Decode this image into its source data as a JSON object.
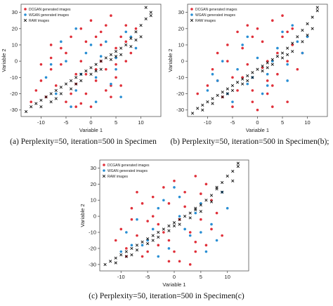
{
  "chart_data": [
    {
      "type": "scatter",
      "caption": "(a) Perplexity=50, iteration=500 in Specimen",
      "xlabel": "Variable 1",
      "ylabel": "Variable 2",
      "xlim": [
        -14,
        14
      ],
      "ylim": [
        -34,
        35
      ],
      "xticks": [
        -10,
        -5,
        0,
        5,
        10
      ],
      "yticks": [
        -30,
        -20,
        -10,
        0,
        10,
        20,
        30
      ],
      "grid": false,
      "legend_position": "top-left",
      "series": [
        {
          "name": "DCGAN generated images",
          "color": "#e0303a",
          "marker": "dot",
          "x": [
            -12,
            -11,
            -10,
            -9,
            -8,
            -8,
            -7,
            -6,
            -5,
            -4,
            -3,
            -2,
            -1,
            0,
            1,
            2,
            3,
            4,
            5,
            6,
            7,
            -6,
            -4,
            -2,
            0,
            2,
            4,
            6,
            8,
            -3,
            -1,
            1,
            3,
            5,
            7,
            -5,
            -3,
            -1,
            1,
            3,
            5,
            7,
            9,
            -8,
            -10,
            2,
            4,
            -2
          ],
          "y": [
            -25,
            -18,
            -12,
            -22,
            -5,
            2,
            -15,
            8,
            -25,
            15,
            -8,
            20,
            -20,
            25,
            -12,
            18,
            -5,
            28,
            8,
            -15,
            22,
            -2,
            -20,
            0,
            -28,
            10,
            -22,
            15,
            5,
            -14,
            12,
            -5,
            22,
            -10,
            0,
            5,
            -28,
            -8,
            15,
            -18,
            -2,
            12,
            20,
            10,
            -2,
            0,
            -15,
            -26
          ]
        },
        {
          "name": "WGAN generated images",
          "color": "#2a8fd4",
          "marker": "dot",
          "x": [
            -9,
            -7,
            -5,
            -3,
            -1,
            1,
            3,
            5,
            7,
            9,
            -6,
            -2,
            2,
            6,
            -4,
            0,
            4,
            8,
            -8,
            -3,
            1,
            5
          ],
          "y": [
            -10,
            -20,
            0,
            -18,
            5,
            -25,
            12,
            -5,
            18,
            8,
            12,
            -8,
            3,
            -22,
            -28,
            10,
            -14,
            15,
            -2,
            20,
            -10,
            2
          ]
        },
        {
          "name": "RAW images",
          "color": "#111111",
          "marker": "x",
          "x": [
            -13,
            -12,
            -11,
            -10,
            -9,
            -8,
            -7,
            -6,
            -5,
            -4,
            -3,
            -2,
            -1,
            0,
            1,
            2,
            3,
            4,
            5,
            6,
            7,
            8,
            9,
            10,
            11,
            12,
            -10,
            -8,
            -6,
            -4,
            -2,
            0,
            2,
            4,
            6,
            8,
            10,
            12,
            -7,
            -3,
            1,
            5,
            9,
            11
          ],
          "y": [
            -31,
            -28,
            -26,
            -24,
            -22,
            -20,
            -18,
            -16,
            -14,
            -12,
            -10,
            -8,
            -6,
            -4,
            -2,
            0,
            2,
            4,
            6,
            8,
            10,
            14,
            18,
            22,
            26,
            30,
            -28,
            -25,
            -20,
            -17,
            -12,
            -8,
            -5,
            1,
            4,
            9,
            15,
            28,
            -23,
            -14,
            -6,
            3,
            13,
            33
          ]
        }
      ]
    },
    {
      "type": "scatter",
      "caption": "(b) Perplexity=50, iteration=500 in Specimen(b);",
      "xlabel": "Variable 1",
      "ylabel": "Variable 2",
      "xlim": [
        -14,
        14
      ],
      "ylim": [
        -34,
        35
      ],
      "xticks": [
        -10,
        -5,
        0,
        5,
        10
      ],
      "yticks": [
        -30,
        -20,
        -10,
        0,
        10,
        20,
        30
      ],
      "grid": false,
      "legend_position": "top-left",
      "series": [
        {
          "name": "DCGAN generated images",
          "color": "#e0303a",
          "marker": "dot",
          "x": [
            -12,
            -10,
            -9,
            -8,
            -7,
            -6,
            -5,
            -4,
            -3,
            -2,
            -1,
            0,
            1,
            2,
            3,
            4,
            5,
            6,
            7,
            8,
            -6,
            -4,
            -2,
            0,
            2,
            4,
            6,
            -3,
            -1,
            1,
            3,
            5,
            7,
            -5,
            -1,
            3,
            9,
            -8,
            2,
            6
          ],
          "y": [
            -20,
            -15,
            -5,
            5,
            -22,
            10,
            -28,
            18,
            -10,
            22,
            -18,
            -30,
            12,
            -20,
            25,
            -8,
            15,
            -25,
            20,
            -5,
            0,
            -18,
            -2,
            20,
            -12,
            5,
            0,
            8,
            -25,
            -4,
            -28,
            28,
            10,
            -10,
            15,
            -15,
            5,
            -12,
            0,
            18
          ]
        },
        {
          "name": "WGAN generated images",
          "color": "#2a8fd4",
          "marker": "dot",
          "x": [
            -10,
            -8,
            -6,
            -4,
            -2,
            0,
            2,
            4,
            6,
            8,
            10,
            -7,
            -3,
            1,
            5,
            9,
            -5,
            -1,
            3,
            7,
            -9,
            -2,
            2,
            6
          ],
          "y": [
            -18,
            -12,
            -20,
            -5,
            -14,
            2,
            -8,
            8,
            -2,
            12,
            15,
            0,
            10,
            -20,
            18,
            5,
            -25,
            -10,
            0,
            22,
            -8,
            15,
            -15,
            -12
          ]
        },
        {
          "name": "RAW images",
          "color": "#111111",
          "marker": "x",
          "x": [
            -13,
            -12,
            -11,
            -10,
            -9,
            -8,
            -7,
            -6,
            -5,
            -4,
            -3,
            -2,
            -1,
            0,
            1,
            2,
            3,
            4,
            5,
            6,
            7,
            8,
            9,
            10,
            11,
            12,
            -11,
            -9,
            -7,
            -5,
            -3,
            -1,
            1,
            3,
            5,
            7,
            9,
            11,
            -6,
            -2,
            2,
            6,
            10,
            12
          ],
          "y": [
            -32,
            -29,
            -27,
            -25,
            -23,
            -21,
            -19,
            -17,
            -15,
            -13,
            -11,
            -9,
            -7,
            -5,
            -3,
            -1,
            1,
            3,
            5,
            8,
            11,
            15,
            19,
            23,
            27,
            31,
            -30,
            -26,
            -22,
            -18,
            -14,
            -10,
            -6,
            -2,
            2,
            6,
            12,
            20,
            -20,
            -12,
            -4,
            4,
            16,
            33
          ]
        }
      ]
    },
    {
      "type": "scatter",
      "caption": "(c) Perplexity=50, iteration=500 in Specimen(c)",
      "xlabel": "Variable 1",
      "ylabel": "Variable 2",
      "xlim": [
        -14,
        14
      ],
      "ylim": [
        -34,
        35
      ],
      "xticks": [
        -10,
        -5,
        0,
        5,
        10
      ],
      "yticks": [
        -30,
        -20,
        -10,
        0,
        10,
        20,
        30
      ],
      "grid": false,
      "legend_position": "top-left",
      "series": [
        {
          "name": "DCGAN generated images",
          "color": "#e0303a",
          "marker": "dot",
          "x": [
            -11,
            -10,
            -9,
            -8,
            -7,
            -6,
            -5,
            -4,
            -3,
            -2,
            -1,
            0,
            1,
            2,
            3,
            4,
            5,
            6,
            7,
            8,
            -8,
            -6,
            -4,
            -2,
            0,
            2,
            4,
            6,
            -9,
            -5,
            -1,
            3,
            7,
            -3,
            1,
            5,
            9,
            -7,
            -1,
            4
          ],
          "y": [
            -15,
            -8,
            -20,
            -2,
            -12,
            8,
            -22,
            12,
            -5,
            18,
            -15,
            22,
            -28,
            15,
            -10,
            25,
            -2,
            -18,
            10,
            2,
            5,
            -25,
            0,
            -10,
            -22,
            6,
            -16,
            20,
            -25,
            -3,
            8,
            -30,
            -8,
            -18,
            -2,
            14,
            -12,
            15,
            -28,
            -22
          ]
        },
        {
          "name": "WGAN generated images",
          "color": "#2a8fd4",
          "marker": "dot",
          "x": [
            -9,
            -7,
            -5,
            -3,
            -1,
            1,
            3,
            5,
            7,
            9,
            -6,
            -2,
            2,
            6,
            -4,
            0,
            4,
            8,
            -8,
            -3,
            1,
            5,
            -10,
            10
          ],
          "y": [
            -10,
            -2,
            -15,
            5,
            -20,
            0,
            -12,
            8,
            -5,
            15,
            -18,
            10,
            -8,
            -22,
            -8,
            18,
            2,
            -15,
            -18,
            -25,
            12,
            -10,
            -22,
            5
          ]
        },
        {
          "name": "RAW images",
          "color": "#111111",
          "marker": "x",
          "x": [
            -13,
            -12,
            -11,
            -10,
            -9,
            -8,
            -7,
            -6,
            -5,
            -4,
            -3,
            -2,
            -1,
            0,
            1,
            2,
            3,
            4,
            5,
            6,
            7,
            8,
            9,
            10,
            11,
            12,
            -11,
            -9,
            -7,
            -5,
            -3,
            -1,
            1,
            3,
            5,
            7,
            9,
            11,
            -8,
            -4,
            0,
            4,
            8,
            12
          ],
          "y": [
            -30,
            -28,
            -26,
            -24,
            -22,
            -20,
            -18,
            -16,
            -14,
            -12,
            -10,
            -8,
            -6,
            -4,
            -2,
            0,
            2,
            4,
            7,
            10,
            13,
            17,
            21,
            25,
            28,
            31,
            -29,
            -25,
            -21,
            -17,
            -13,
            -9,
            -5,
            -1,
            3,
            9,
            15,
            22,
            -24,
            -15,
            -6,
            5,
            18,
            33
          ]
        }
      ]
    }
  ]
}
